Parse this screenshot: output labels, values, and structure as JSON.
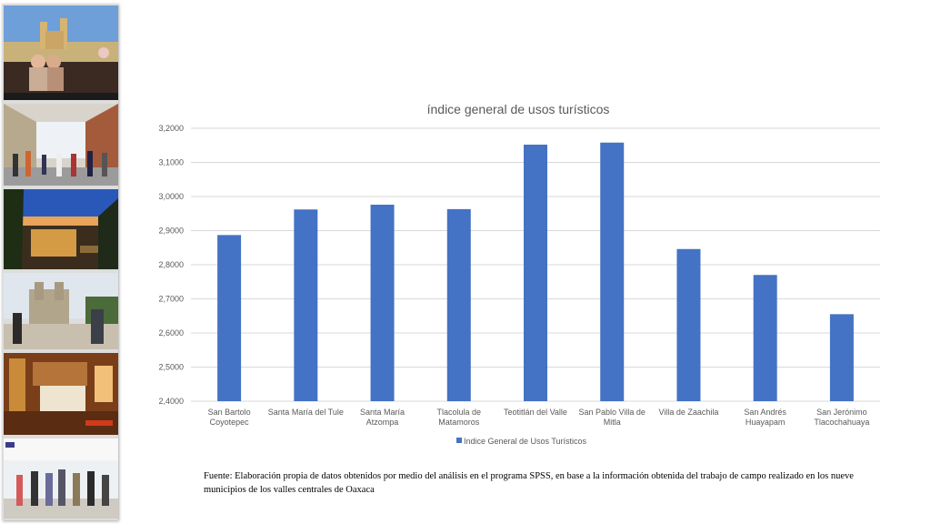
{
  "colors": {
    "bar": "#4472C4",
    "grid": "#D9D9D9",
    "text": "#595959"
  },
  "photos": [
    {
      "name": "photo-rooftop-couple",
      "icon": "cathedral-couple-photo"
    },
    {
      "name": "photo-pedestrian-street",
      "icon": "street-crowd-photo"
    },
    {
      "name": "photo-terrace-sunset",
      "icon": "terrace-photo"
    },
    {
      "name": "photo-church-plaza",
      "icon": "church-photo"
    },
    {
      "name": "photo-hotel-room",
      "icon": "hotel-room-photo"
    },
    {
      "name": "photo-tourist-walkway",
      "icon": "tourists-photo"
    }
  ],
  "chart_data": {
    "type": "bar",
    "title": "índice general de usos turísticos",
    "categories": [
      [
        "San Bartolo",
        "Coyotepec"
      ],
      [
        "Santa María del Tule"
      ],
      [
        "Santa María",
        "Atzompa"
      ],
      [
        "Tlacolula de",
        "Matamoros"
      ],
      [
        "Teotitlán del Valle"
      ],
      [
        "San Pablo Villa de",
        "Mitla"
      ],
      [
        "Villa de Zaachila"
      ],
      [
        "San Andrés",
        "Huayapam"
      ],
      [
        "San Jerónimo",
        "Tlacochahuaya"
      ]
    ],
    "series": [
      {
        "name": "Indice General de Usos Turísticos",
        "values": [
          2.887,
          2.962,
          2.976,
          2.963,
          3.152,
          3.158,
          2.846,
          2.77,
          2.655
        ]
      }
    ],
    "ylim": [
      2.4,
      3.2
    ],
    "yticks": [
      "2,4000",
      "2,5000",
      "2,6000",
      "2,7000",
      "2,8000",
      "2,9000",
      "3,0000",
      "3,1000",
      "3,2000"
    ],
    "legend": "bottom",
    "grid": true
  },
  "source_note": "Fuente: Elaboración propia de datos obtenidos por medio del  análisis en el programa SPSS, en base a la información obtenida del trabajo de campo realizado en los nueve municipios de los valles centrales de Oaxaca"
}
